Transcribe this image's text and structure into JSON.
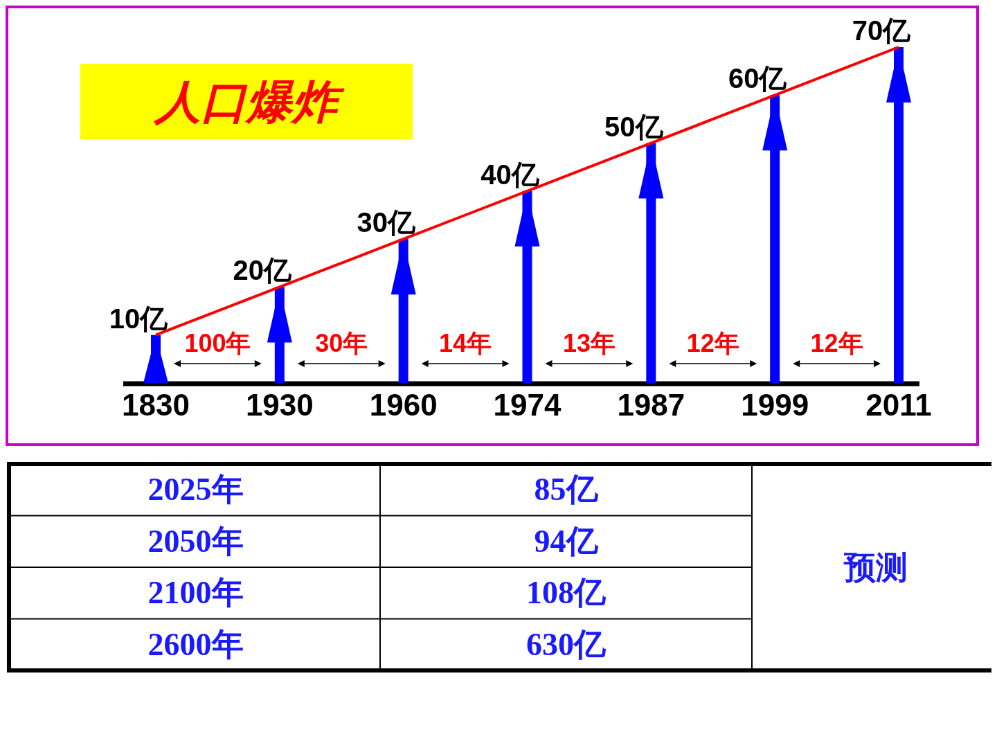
{
  "chart_data": [
    {
      "type": "bar",
      "title": "人口爆炸",
      "categories": [
        "1830",
        "1930",
        "1960",
        "1974",
        "1987",
        "1999",
        "2011"
      ],
      "series": [
        {
          "type": "bar",
          "color": "#0000ff",
          "values": [
            10,
            20,
            30,
            40,
            50,
            60,
            70
          ],
          "value_labels": [
            "10亿",
            "20亿",
            "30亿",
            "40亿",
            "50亿",
            "60亿",
            "70亿"
          ]
        },
        {
          "type": "line",
          "color": "#ff0000",
          "values": [
            10,
            20,
            30,
            40,
            50,
            60,
            70
          ]
        }
      ],
      "annotations": [
        "100年",
        "30年",
        "14年",
        "13年",
        "12年",
        "12年"
      ]
    },
    {
      "type": "other",
      "annotations": [
        "2025年",
        "85亿",
        "2050年",
        "94亿",
        "2100年",
        "108亿",
        "2600年",
        "630亿",
        "预测"
      ]
    }
  ]
}
